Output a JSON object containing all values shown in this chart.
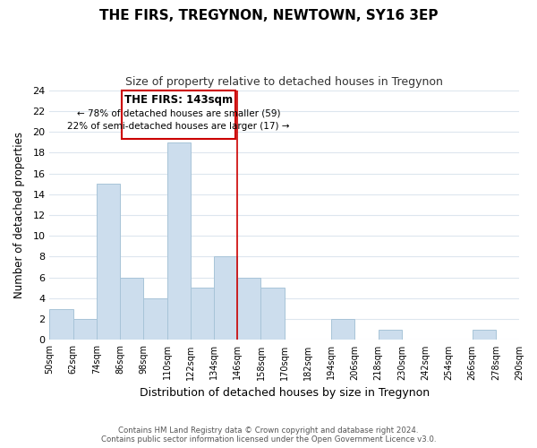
{
  "title": "THE FIRS, TREGYNON, NEWTOWN, SY16 3EP",
  "subtitle": "Size of property relative to detached houses in Tregynon",
  "xlabel": "Distribution of detached houses by size in Tregynon",
  "ylabel": "Number of detached properties",
  "footer_line1": "Contains HM Land Registry data © Crown copyright and database right 2024.",
  "footer_line2": "Contains public sector information licensed under the Open Government Licence v3.0.",
  "bin_edges": [
    50,
    62,
    74,
    86,
    98,
    110,
    122,
    134,
    146,
    158,
    170,
    182,
    194,
    206,
    218,
    230,
    242,
    254,
    266,
    278,
    290
  ],
  "bar_heights": [
    3,
    2,
    15,
    6,
    4,
    19,
    5,
    8,
    6,
    5,
    0,
    0,
    2,
    0,
    1,
    0,
    0,
    0,
    1,
    0
  ],
  "bar_color": "#ccdded",
  "bar_edgecolor": "#a8c4d8",
  "reference_line_x": 146,
  "reference_line_color": "#cc0000",
  "ylim": [
    0,
    24
  ],
  "yticks": [
    0,
    2,
    4,
    6,
    8,
    10,
    12,
    14,
    16,
    18,
    20,
    22,
    24
  ],
  "annotation_title": "THE FIRS: 143sqm",
  "annotation_line1": "← 78% of detached houses are smaller (59)",
  "annotation_line2": "22% of semi-detached houses are larger (17) →",
  "annotation_box_edgecolor": "#cc0000",
  "annotation_box_facecolor": "#ffffff",
  "grid_color": "#dde6ee",
  "background_color": "#ffffff",
  "title_fontsize": 11,
  "subtitle_fontsize": 9
}
